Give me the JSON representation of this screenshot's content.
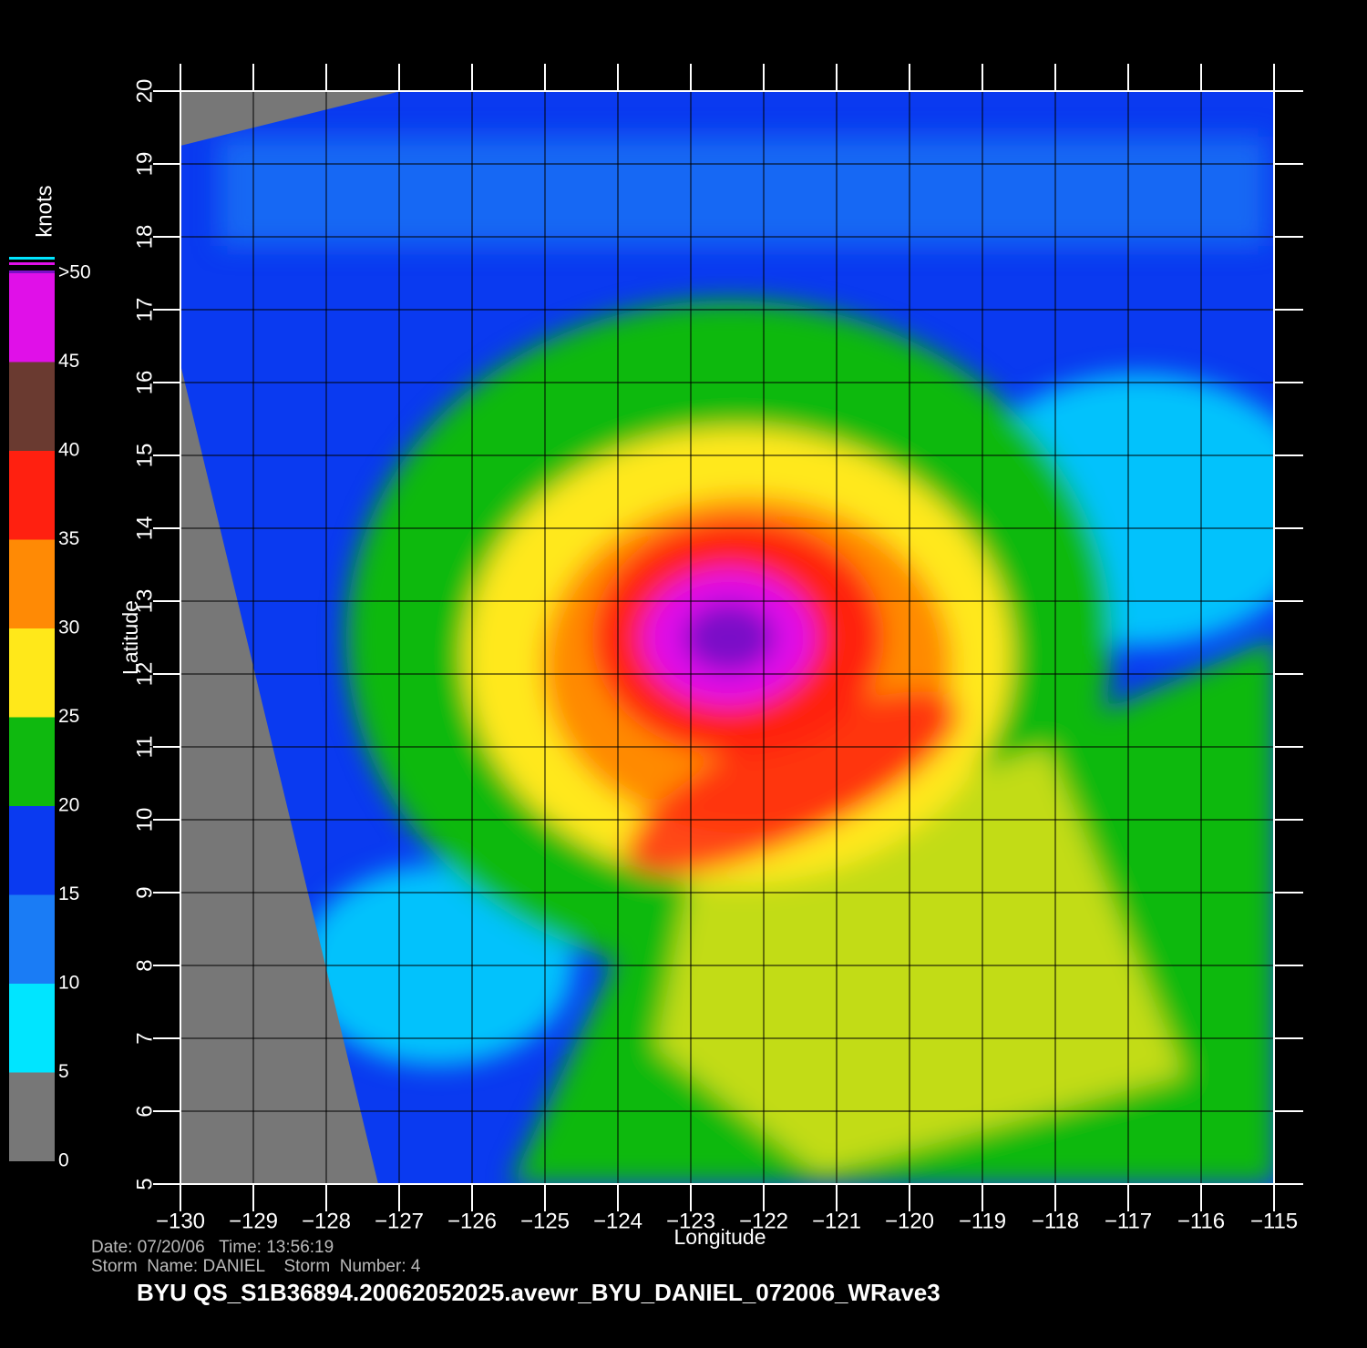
{
  "chart_data": {
    "type": "map",
    "xlabel": "Longitude",
    "ylabel": "Latitude",
    "xlim": [
      -130,
      -115
    ],
    "ylim": [
      5,
      20
    ],
    "xticks": [
      {
        "value": -130,
        "label": "−130"
      },
      {
        "value": -129,
        "label": "−129"
      },
      {
        "value": -128,
        "label": "−128"
      },
      {
        "value": -127,
        "label": "−127"
      },
      {
        "value": -126,
        "label": "−126"
      },
      {
        "value": -125,
        "label": "−125"
      },
      {
        "value": -124,
        "label": "−124"
      },
      {
        "value": -123,
        "label": "−123"
      },
      {
        "value": -122,
        "label": "−122"
      },
      {
        "value": -121,
        "label": "−121"
      },
      {
        "value": -120,
        "label": "−120"
      },
      {
        "value": -119,
        "label": "−119"
      },
      {
        "value": -118,
        "label": "−118"
      },
      {
        "value": -117,
        "label": "−117"
      },
      {
        "value": -116,
        "label": "−116"
      },
      {
        "value": -115,
        "label": "−115"
      }
    ],
    "yticks": [
      5,
      6,
      7,
      8,
      9,
      10,
      11,
      12,
      13,
      14,
      15,
      16,
      17,
      18,
      19,
      20
    ],
    "grid": true,
    "colorbar": {
      "label": "knots",
      "lim": [
        0,
        50
      ],
      "ticks": [
        0,
        5,
        10,
        15,
        20,
        25,
        30,
        35,
        40,
        45,
        {
          "value": 50,
          "label": ">50"
        }
      ],
      "colors": [
        "#777777",
        "#00e5ff",
        "#1a7cf5",
        "#0a3af0",
        "#0fb90f",
        "#ffe81a",
        "#ff8a05",
        "#ff2010",
        "#6a3a30",
        "#e010e8",
        "#7a10c8"
      ]
    },
    "footer": {
      "line1": "Date: 07/20/06   Time: 13:56:19",
      "line2": "Storm  Name: DANIEL    Storm  Number: 4",
      "title": "BYU  QS_S1B36894.20062052025.avewr_BYU_DANIEL_072006_WRave3"
    }
  }
}
